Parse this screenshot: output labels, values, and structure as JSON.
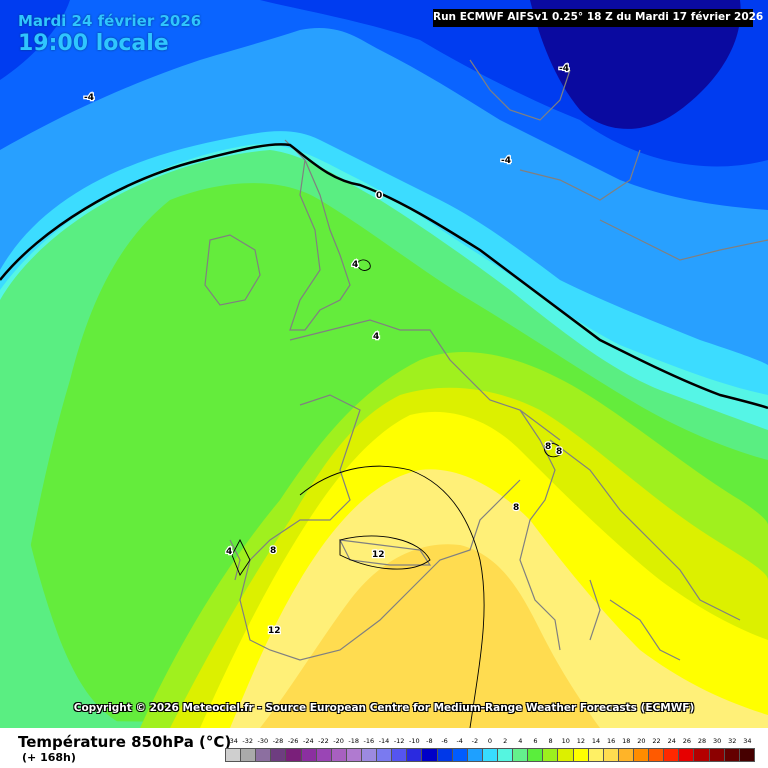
{
  "header": {
    "date": "Mardi 24 février 2026",
    "time": "19:00 locale",
    "run": "Run ECMWF AIFSv1 0.25° 18 Z du Mardi 17 février 2026"
  },
  "footer": {
    "copyright": "Copyright © 2026 Meteociel.fr - Source European Centre for Medium-Range Weather Forecasts (ECMWF)",
    "legend_title": "Température 850hPa (°C)",
    "legend_sub": "(+ 168h)"
  },
  "legend": {
    "ticks": [
      "-34",
      "-32",
      "-30",
      "-28",
      "-26",
      "-24",
      "-22",
      "-20",
      "-18",
      "-16",
      "-14",
      "-12",
      "-10",
      "-8",
      "-6",
      "-4",
      "-2",
      "0",
      "2",
      "4",
      "6",
      "8",
      "10",
      "12",
      "14",
      "16",
      "18",
      "20",
      "22",
      "24",
      "26",
      "28",
      "30",
      "32",
      "34"
    ],
    "colors": [
      "#cfcfcf",
      "#aaaaaa",
      "#8c6fa0",
      "#6e3d80",
      "#7a1f7a",
      "#8b2fa0",
      "#9a45b5",
      "#a860c0",
      "#b07ad0",
      "#9c8ae0",
      "#7a7af0",
      "#5555f0",
      "#2a2ae0",
      "#0000c8",
      "#0038e8",
      "#005cff",
      "#1ea0ff",
      "#38dcff",
      "#55f5e0",
      "#64f08c",
      "#5aee3c",
      "#9cf01e",
      "#dcf000",
      "#ffff00",
      "#fff064",
      "#ffdc50",
      "#ffb428",
      "#ff8c00",
      "#ff5a00",
      "#ff2800",
      "#e60000",
      "#b40000",
      "#8c0000",
      "#640000",
      "#460000"
    ]
  },
  "map": {
    "isolines": [
      {
        "label": "-4",
        "value": -4
      },
      {
        "label": "0",
        "value": 0
      },
      {
        "label": "4",
        "value": 4
      },
      {
        "label": "8",
        "value": 8
      },
      {
        "label": "12",
        "value": 12
      }
    ],
    "colors": {
      "deep_blue": "#0a0aa0",
      "blue": "#003cf0",
      "mid_blue": "#0a64ff",
      "light_blue": "#28a0ff",
      "cyan": "#3cdcff",
      "aqua": "#55f5e6",
      "mint": "#5aee82",
      "green": "#64ec3c",
      "lime": "#a0f01e",
      "yellow_green": "#dcf000",
      "yellow": "#ffff00",
      "pale_yellow": "#fff078",
      "light_orange": "#ffdc50",
      "freezing_line": "#000000",
      "coastline": "#808080"
    }
  }
}
